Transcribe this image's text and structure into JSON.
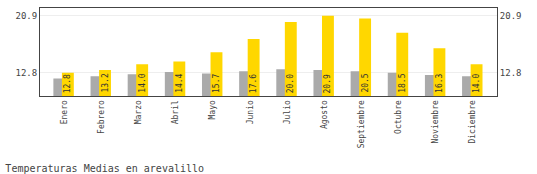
{
  "chart_data": {
    "type": "bar",
    "title": "Temperaturas Medias en arevalillo",
    "categories": [
      "Enero",
      "Febrero",
      "Marzo",
      "Abril",
      "Mayo",
      "Junio",
      "Julio",
      "Agosto",
      "Septiembre",
      "Octubre",
      "Noviembre",
      "Diciembre"
    ],
    "series": [
      {
        "color": "#AAAAAA",
        "values": [
          12.0,
          12.3,
          12.6,
          12.9,
          12.7,
          13.0,
          13.3,
          13.2,
          13.0,
          12.8,
          12.5,
          12.3
        ]
      },
      {
        "color": "#FFD700",
        "values": [
          12.8,
          13.2,
          14.0,
          14.4,
          15.7,
          17.6,
          20.0,
          20.9,
          20.5,
          18.5,
          16.3,
          14.0
        ],
        "value_labels": [
          "12.8",
          "13.2",
          "14.0",
          "14.4",
          "15.7",
          "17.6",
          "20.0",
          "20.9",
          "20.5",
          "18.5",
          "16.3",
          "14.0"
        ],
        "data_labels": true
      }
    ],
    "ylim": [
      9.5,
      22.0
    ],
    "yticks": [
      12.8,
      20.9
    ],
    "grid": true
  }
}
